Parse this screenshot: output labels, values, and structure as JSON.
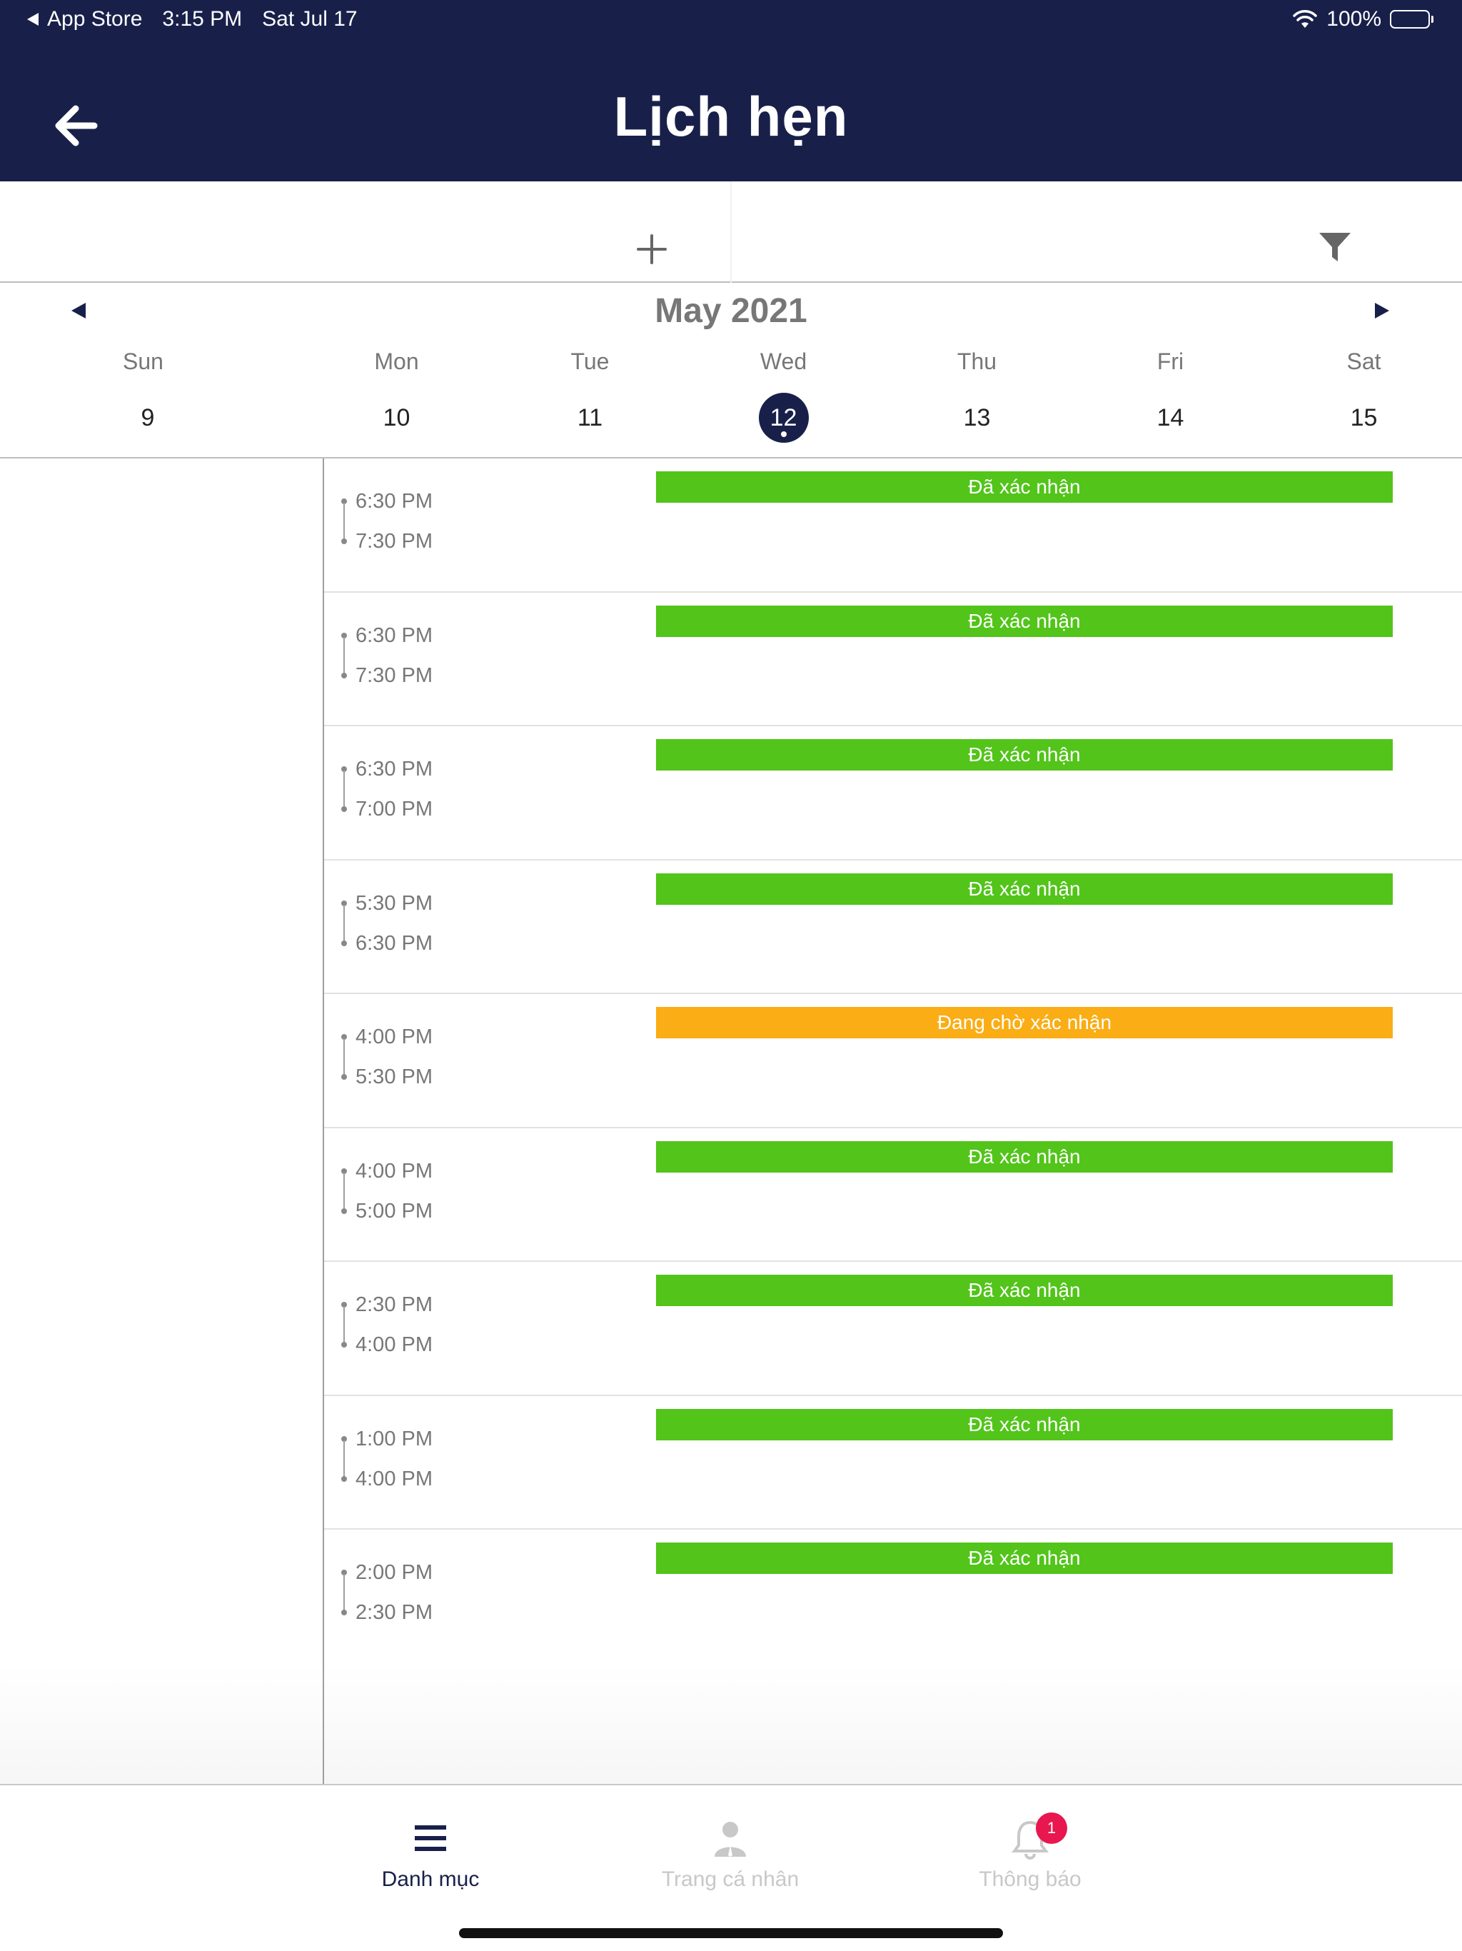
{
  "status_bar": {
    "back_app": "App Store",
    "time": "3:15 PM",
    "date": "Sat Jul 17",
    "battery": "100%"
  },
  "header": {
    "title": "Lịch hẹn"
  },
  "calendar": {
    "month_label": "May 2021",
    "days": [
      {
        "name": "Sun",
        "num": "9"
      },
      {
        "name": "Mon",
        "num": "10"
      },
      {
        "name": "Tue",
        "num": "11"
      },
      {
        "name": "Wed",
        "num": "12"
      },
      {
        "name": "Thu",
        "num": "13"
      },
      {
        "name": "Fri",
        "num": "14"
      },
      {
        "name": "Sat",
        "num": "15"
      }
    ],
    "selected_day": "12"
  },
  "appointments": [
    {
      "start": "6:30 PM",
      "end": "7:30 PM",
      "status": "Đã xác nhận"
    },
    {
      "start": "6:30 PM",
      "end": "7:30 PM",
      "status": "Đã xác nhận"
    },
    {
      "start": "6:30 PM",
      "end": "7:00 PM",
      "status": "Đã xác nhận"
    },
    {
      "start": "5:30 PM",
      "end": "6:30 PM",
      "status": "Đã xác nhận"
    },
    {
      "start": "4:00 PM",
      "end": "5:30 PM",
      "status": "Đang chờ xác nhận"
    },
    {
      "start": "4:00 PM",
      "end": "5:00 PM",
      "status": "Đã xác nhận"
    },
    {
      "start": "2:30 PM",
      "end": "4:00 PM",
      "status": "Đã xác nhận"
    },
    {
      "start": "1:00 PM",
      "end": "4:00 PM",
      "status": "Đã xác nhận"
    },
    {
      "start": "2:00 PM",
      "end": "2:30 PM",
      "status": "Đã xác nhận"
    }
  ],
  "status_colors": {
    "Đã xác nhận": "#52c41a",
    "Đang chờ xác nhận": "#faad14"
  },
  "tabbar": {
    "menu": {
      "label": "Danh mục",
      "icon": "menu-icon"
    },
    "profile": {
      "label": "Trang cá nhân",
      "icon": "person-icon"
    },
    "notifications": {
      "label": "Thông báo",
      "icon": "bell-icon",
      "badge": "1"
    }
  },
  "colors": {
    "primary": "#18204a",
    "inactive": "#c8c8c8"
  }
}
